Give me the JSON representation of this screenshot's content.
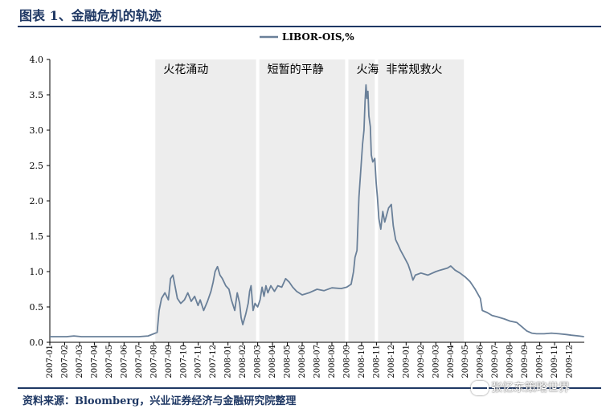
{
  "header": {
    "title": "图表 1、金融危机的轨迹"
  },
  "footer": {
    "source": "资料来源：Bloomberg，兴业证券经济与金融研究院整理"
  },
  "watermark": {
    "text": "张忆东策略世界",
    "icon": "wechat-icon"
  },
  "chart_data": {
    "type": "line",
    "title": "",
    "xlabel": "",
    "ylabel": "",
    "legend": {
      "placement": "top-right",
      "entries": [
        "LIBOR-OIS,%"
      ]
    },
    "grid": false,
    "ylim": [
      0.0,
      4.0
    ],
    "yticks": [
      "0.0",
      "0.5",
      "1.0",
      "1.5",
      "2.0",
      "2.5",
      "3.0",
      "3.5",
      "4.0"
    ],
    "xlim": [
      "2007-01",
      "2009-12"
    ],
    "xticks": [
      "2007-01",
      "2007-02",
      "2007-03",
      "2007-04",
      "2007-05",
      "2007-06",
      "2007-07",
      "2007-08",
      "2007-09",
      "2007-10",
      "2007-11",
      "2007-12",
      "2008-01",
      "2008-02",
      "2008-03",
      "2008-04",
      "2008-05",
      "2008-06",
      "2008-07",
      "2008-08",
      "2008-09",
      "2008-10",
      "2008-11",
      "2008-12",
      "2009-01",
      "2009-02",
      "2009-03",
      "2009-04",
      "2009-05",
      "2009-06",
      "2009-07",
      "2009-08",
      "2009-09",
      "2009-10",
      "2009-11",
      "2009-12"
    ],
    "phases": [
      {
        "label": "火花涌动",
        "start": "2007-08",
        "end": "2008-03"
      },
      {
        "label": "短暂的平静",
        "start": "2008-03",
        "end": "2008-09"
      },
      {
        "label": "火海",
        "start": "2008-09",
        "end": "2008-11"
      },
      {
        "label": "非常规救火",
        "start": "2008-11",
        "end": "2009-05"
      }
    ],
    "series": [
      {
        "name": "LIBOR-OIS,%",
        "color": "#6a8099",
        "points": [
          [
            "2007-01-01",
            0.08
          ],
          [
            "2007-01-20",
            0.08
          ],
          [
            "2007-02-05",
            0.08
          ],
          [
            "2007-02-20",
            0.09
          ],
          [
            "2007-03-05",
            0.08
          ],
          [
            "2007-04-01",
            0.08
          ],
          [
            "2007-05-01",
            0.08
          ],
          [
            "2007-06-01",
            0.08
          ],
          [
            "2007-07-01",
            0.08
          ],
          [
            "2007-07-20",
            0.09
          ],
          [
            "2007-08-01",
            0.12
          ],
          [
            "2007-08-08",
            0.14
          ],
          [
            "2007-08-12",
            0.45
          ],
          [
            "2007-08-17",
            0.62
          ],
          [
            "2007-08-24",
            0.7
          ],
          [
            "2007-08-31",
            0.6
          ],
          [
            "2007-09-05",
            0.9
          ],
          [
            "2007-09-10",
            0.95
          ],
          [
            "2007-09-14",
            0.8
          ],
          [
            "2007-09-19",
            0.62
          ],
          [
            "2007-09-26",
            0.55
          ],
          [
            "2007-10-03",
            0.6
          ],
          [
            "2007-10-10",
            0.7
          ],
          [
            "2007-10-17",
            0.58
          ],
          [
            "2007-10-24",
            0.65
          ],
          [
            "2007-10-31",
            0.52
          ],
          [
            "2007-11-05",
            0.6
          ],
          [
            "2007-11-12",
            0.45
          ],
          [
            "2007-11-20",
            0.58
          ],
          [
            "2007-11-27",
            0.72
          ],
          [
            "2007-12-01",
            0.85
          ],
          [
            "2007-12-05",
            1.0
          ],
          [
            "2007-12-10",
            1.07
          ],
          [
            "2007-12-15",
            0.95
          ],
          [
            "2007-12-20",
            0.9
          ],
          [
            "2007-12-27",
            0.8
          ],
          [
            "2008-01-03",
            0.75
          ],
          [
            "2008-01-08",
            0.6
          ],
          [
            "2008-01-15",
            0.45
          ],
          [
            "2008-01-20",
            0.7
          ],
          [
            "2008-01-25",
            0.55
          ],
          [
            "2008-01-28",
            0.35
          ],
          [
            "2008-02-01",
            0.25
          ],
          [
            "2008-02-07",
            0.4
          ],
          [
            "2008-02-12",
            0.55
          ],
          [
            "2008-02-15",
            0.72
          ],
          [
            "2008-02-18",
            0.8
          ],
          [
            "2008-02-22",
            0.45
          ],
          [
            "2008-02-26",
            0.55
          ],
          [
            "2008-03-01",
            0.5
          ],
          [
            "2008-03-06",
            0.6
          ],
          [
            "2008-03-10",
            0.78
          ],
          [
            "2008-03-14",
            0.65
          ],
          [
            "2008-03-18",
            0.8
          ],
          [
            "2008-03-22",
            0.7
          ],
          [
            "2008-03-28",
            0.8
          ],
          [
            "2008-04-05",
            0.72
          ],
          [
            "2008-04-12",
            0.8
          ],
          [
            "2008-04-20",
            0.78
          ],
          [
            "2008-04-28",
            0.9
          ],
          [
            "2008-05-05",
            0.85
          ],
          [
            "2008-05-12",
            0.78
          ],
          [
            "2008-05-20",
            0.72
          ],
          [
            "2008-06-01",
            0.67
          ],
          [
            "2008-06-15",
            0.7
          ],
          [
            "2008-07-01",
            0.75
          ],
          [
            "2008-07-15",
            0.73
          ],
          [
            "2008-08-01",
            0.77
          ],
          [
            "2008-08-20",
            0.76
          ],
          [
            "2008-09-01",
            0.78
          ],
          [
            "2008-09-10",
            0.82
          ],
          [
            "2008-09-15",
            1.0
          ],
          [
            "2008-09-18",
            1.2
          ],
          [
            "2008-09-22",
            1.3
          ],
          [
            "2008-09-26",
            2.05
          ],
          [
            "2008-09-30",
            2.45
          ],
          [
            "2008-10-03",
            2.8
          ],
          [
            "2008-10-06",
            3.0
          ],
          [
            "2008-10-08",
            3.4
          ],
          [
            "2008-10-10",
            3.64
          ],
          [
            "2008-10-12",
            3.45
          ],
          [
            "2008-10-14",
            3.55
          ],
          [
            "2008-10-16",
            3.2
          ],
          [
            "2008-10-19",
            3.05
          ],
          [
            "2008-10-21",
            2.65
          ],
          [
            "2008-10-24",
            2.55
          ],
          [
            "2008-10-28",
            2.6
          ],
          [
            "2008-10-31",
            2.25
          ],
          [
            "2008-11-03",
            2.05
          ],
          [
            "2008-11-06",
            1.75
          ],
          [
            "2008-11-10",
            1.6
          ],
          [
            "2008-11-14",
            1.85
          ],
          [
            "2008-11-18",
            1.7
          ],
          [
            "2008-11-22",
            1.8
          ],
          [
            "2008-11-26",
            1.9
          ],
          [
            "2008-12-01",
            1.95
          ],
          [
            "2008-12-05",
            1.65
          ],
          [
            "2008-12-10",
            1.45
          ],
          [
            "2008-12-15",
            1.38
          ],
          [
            "2008-12-20",
            1.3
          ],
          [
            "2008-12-28",
            1.2
          ],
          [
            "2009-01-05",
            1.1
          ],
          [
            "2009-01-10",
            1.0
          ],
          [
            "2009-01-15",
            0.88
          ],
          [
            "2009-01-20",
            0.95
          ],
          [
            "2009-02-01",
            0.98
          ],
          [
            "2009-02-15",
            0.95
          ],
          [
            "2009-03-01",
            1.0
          ],
          [
            "2009-03-10",
            1.02
          ],
          [
            "2009-03-25",
            1.05
          ],
          [
            "2009-04-01",
            1.08
          ],
          [
            "2009-04-10",
            1.02
          ],
          [
            "2009-04-20",
            0.98
          ],
          [
            "2009-05-01",
            0.92
          ],
          [
            "2009-05-10",
            0.86
          ],
          [
            "2009-05-20",
            0.76
          ],
          [
            "2009-06-01",
            0.62
          ],
          [
            "2009-06-05",
            0.45
          ],
          [
            "2009-06-15",
            0.42
          ],
          [
            "2009-06-25",
            0.38
          ],
          [
            "2009-07-05",
            0.36
          ],
          [
            "2009-07-20",
            0.33
          ],
          [
            "2009-08-01",
            0.3
          ],
          [
            "2009-08-15",
            0.28
          ],
          [
            "2009-08-25",
            0.22
          ],
          [
            "2009-09-05",
            0.16
          ],
          [
            "2009-09-15",
            0.13
          ],
          [
            "2009-09-25",
            0.12
          ],
          [
            "2009-10-10",
            0.12
          ],
          [
            "2009-10-25",
            0.13
          ],
          [
            "2009-11-10",
            0.12
          ],
          [
            "2009-11-25",
            0.11
          ],
          [
            "2009-12-05",
            0.1
          ],
          [
            "2009-12-20",
            0.09
          ],
          [
            "2009-12-31",
            0.08
          ]
        ]
      }
    ]
  }
}
